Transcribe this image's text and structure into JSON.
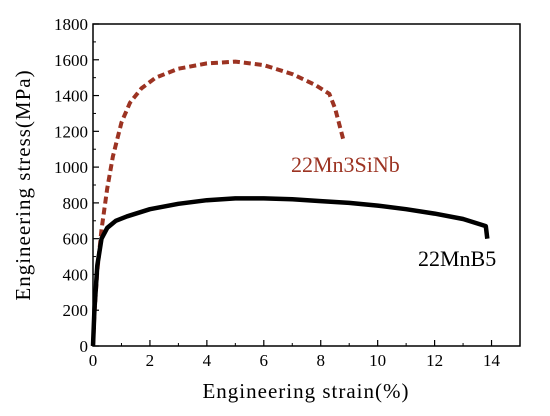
{
  "chart_data": {
    "type": "line",
    "title": "",
    "xlabel": "Engineering strain(%)",
    "ylabel": "Engineering stress(MPa)",
    "xlim": [
      0,
      15
    ],
    "ylim": [
      0,
      1800
    ],
    "xticks": [
      0,
      2,
      4,
      6,
      8,
      10,
      12,
      14
    ],
    "yticks": [
      0,
      200,
      400,
      600,
      800,
      1000,
      1200,
      1400,
      1600,
      1800
    ],
    "grid": false,
    "series": [
      {
        "name": "22Mn3SiNb",
        "color": "#9c3322",
        "style": "dashed",
        "points": [
          [
            0.0,
            0
          ],
          [
            0.05,
            180
          ],
          [
            0.15,
            420
          ],
          [
            0.3,
            650
          ],
          [
            0.5,
            880
          ],
          [
            0.7,
            1060
          ],
          [
            1.0,
            1250
          ],
          [
            1.3,
            1360
          ],
          [
            1.7,
            1440
          ],
          [
            2.2,
            1500
          ],
          [
            3.0,
            1550
          ],
          [
            4.0,
            1580
          ],
          [
            5.0,
            1590
          ],
          [
            6.0,
            1570
          ],
          [
            7.0,
            1520
          ],
          [
            7.8,
            1460
          ],
          [
            8.3,
            1410
          ],
          [
            8.5,
            1330
          ],
          [
            8.8,
            1150
          ]
        ]
      },
      {
        "name": "22MnB5",
        "color": "#000000",
        "style": "solid",
        "points": [
          [
            0.0,
            0
          ],
          [
            0.05,
            200
          ],
          [
            0.15,
            450
          ],
          [
            0.3,
            600
          ],
          [
            0.5,
            660
          ],
          [
            0.8,
            700
          ],
          [
            1.2,
            725
          ],
          [
            2.0,
            765
          ],
          [
            3.0,
            795
          ],
          [
            4.0,
            815
          ],
          [
            5.0,
            825
          ],
          [
            6.0,
            825
          ],
          [
            7.0,
            820
          ],
          [
            8.0,
            810
          ],
          [
            9.0,
            800
          ],
          [
            10.0,
            785
          ],
          [
            11.0,
            765
          ],
          [
            12.0,
            740
          ],
          [
            13.0,
            710
          ],
          [
            13.8,
            670
          ],
          [
            13.85,
            600
          ]
        ]
      }
    ]
  }
}
